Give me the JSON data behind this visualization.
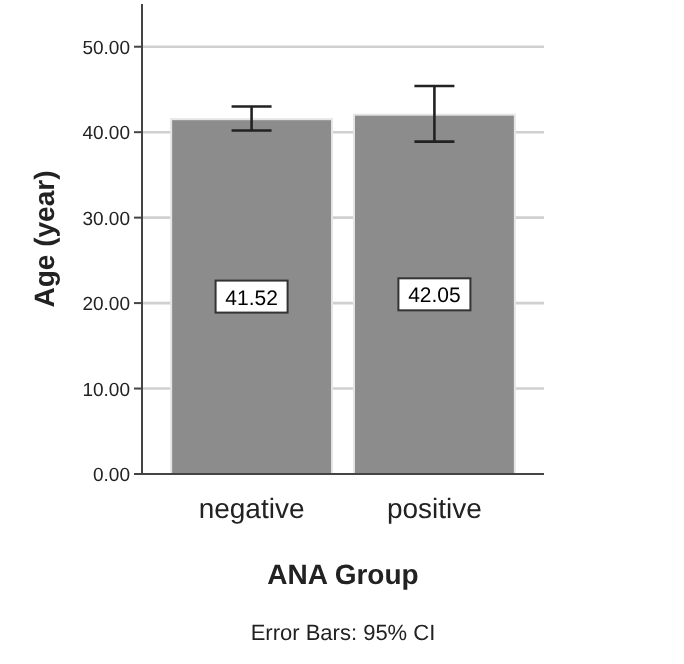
{
  "chart_data": {
    "type": "bar",
    "xlabel": "ANA Group",
    "ylabel": "Age (year)",
    "categories": [
      "negative",
      "positive"
    ],
    "values": [
      41.52,
      42.05
    ],
    "color": "#8c8c8c",
    "errors": [
      [
        40.2,
        43.0
      ],
      [
        38.9,
        45.4
      ]
    ],
    "data_labels": true,
    "ylim": [
      0,
      55
    ],
    "yticks": [
      {
        "value": 0,
        "label": "0.00"
      },
      {
        "value": 10,
        "label": "10.00"
      },
      {
        "value": 20,
        "label": "20.00"
      },
      {
        "value": 30,
        "label": "30.00"
      },
      {
        "value": 40,
        "label": "40.00"
      },
      {
        "value": 50,
        "label": "50.00"
      }
    ],
    "grid": "y",
    "annotations": [
      "Error Bars: 95% CI"
    ]
  }
}
